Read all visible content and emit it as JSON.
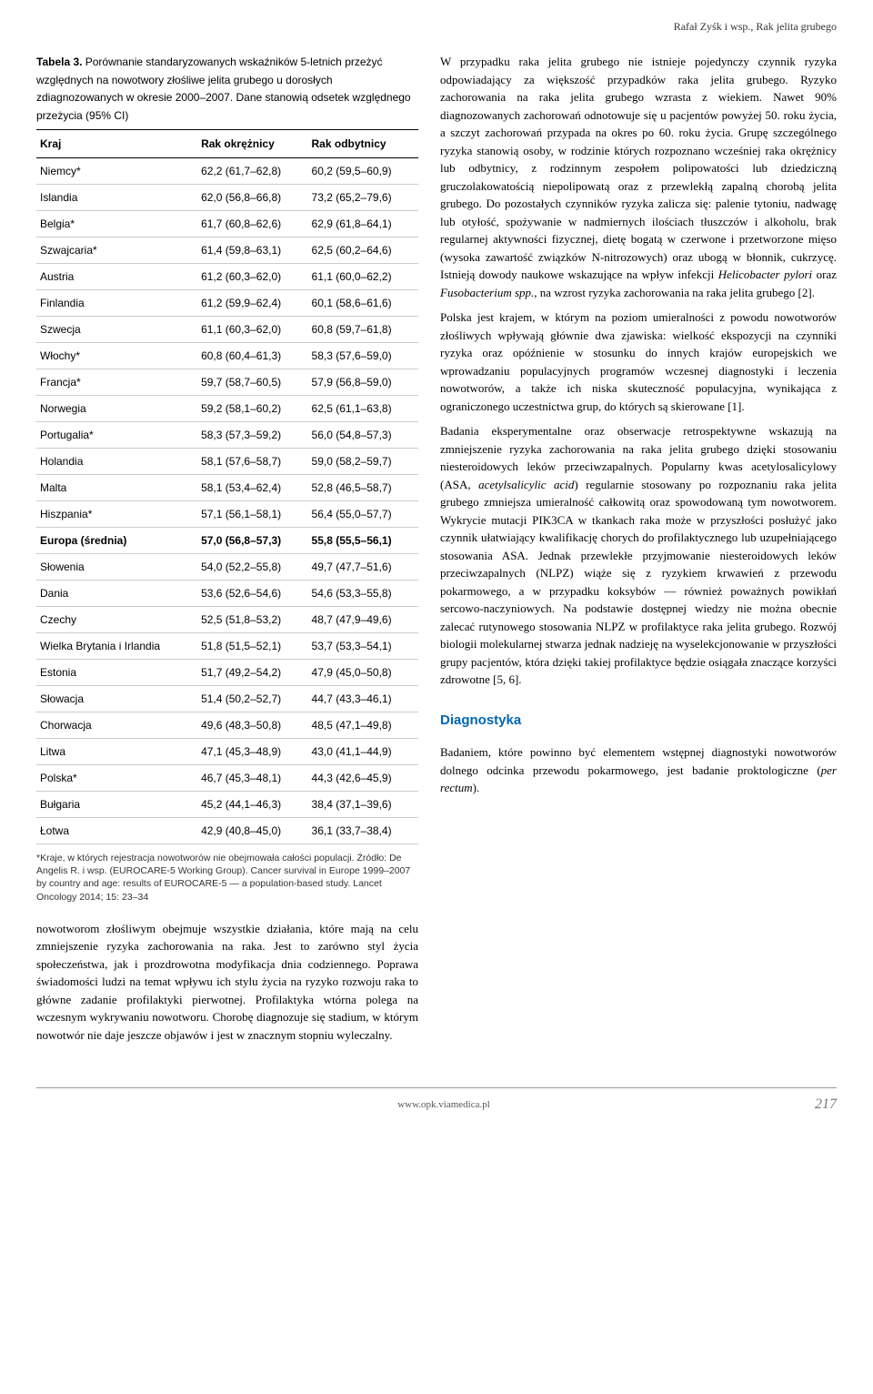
{
  "header": {
    "running_title": "Rafał Zyśk i wsp., Rak jelita grubego"
  },
  "table": {
    "number_label": "Tabela 3.",
    "caption": "Porównanie standaryzowanych wskaźników 5-letnich przeżyć względnych na nowotwory złośliwe jelita grubego u dorosłych zdiagnozowanych w okresie 2000–2007. Dane stanowią odsetek względnego przeżycia (95% CI)",
    "columns": [
      "Kraj",
      "Rak okrężnicy",
      "Rak odbytnicy"
    ],
    "rows": [
      {
        "country": "Niemcy*",
        "colon": "62,2 (61,7–62,8)",
        "rectum": "60,2 (59,5–60,9)",
        "bold": false
      },
      {
        "country": "Islandia",
        "colon": "62,0 (56,8–66,8)",
        "rectum": "73,2 (65,2–79,6)",
        "bold": false
      },
      {
        "country": "Belgia*",
        "colon": "61,7 (60,8–62,6)",
        "rectum": "62,9 (61,8–64,1)",
        "bold": false
      },
      {
        "country": "Szwajcaria*",
        "colon": "61,4 (59,8–63,1)",
        "rectum": "62,5 (60,2–64,6)",
        "bold": false
      },
      {
        "country": "Austria",
        "colon": "61,2 (60,3–62,0)",
        "rectum": "61,1 (60,0–62,2)",
        "bold": false
      },
      {
        "country": "Finlandia",
        "colon": "61,2 (59,9–62,4)",
        "rectum": "60,1 (58,6–61,6)",
        "bold": false
      },
      {
        "country": "Szwecja",
        "colon": "61,1 (60,3–62,0)",
        "rectum": "60,8 (59,7–61,8)",
        "bold": false
      },
      {
        "country": "Włochy*",
        "colon": "60,8 (60,4–61,3)",
        "rectum": "58,3 (57,6–59,0)",
        "bold": false
      },
      {
        "country": "Francja*",
        "colon": "59,7 (58,7–60,5)",
        "rectum": "57,9 (56,8–59,0)",
        "bold": false
      },
      {
        "country": "Norwegia",
        "colon": "59,2 (58,1–60,2)",
        "rectum": "62,5 (61,1–63,8)",
        "bold": false
      },
      {
        "country": "Portugalia*",
        "colon": "58,3 (57,3–59,2)",
        "rectum": "56,0 (54,8–57,3)",
        "bold": false
      },
      {
        "country": "Holandia",
        "colon": "58,1 (57,6–58,7)",
        "rectum": "59,0 (58,2–59,7)",
        "bold": false
      },
      {
        "country": "Malta",
        "colon": "58,1 (53,4–62,4)",
        "rectum": "52,8 (46,5–58,7)",
        "bold": false
      },
      {
        "country": "Hiszpania*",
        "colon": "57,1 (56,1–58,1)",
        "rectum": "56,4 (55,0–57,7)",
        "bold": false
      },
      {
        "country": "Europa (średnia)",
        "colon": "57,0 (56,8–57,3)",
        "rectum": "55,8 (55,5–56,1)",
        "bold": true
      },
      {
        "country": "Słowenia",
        "colon": "54,0 (52,2–55,8)",
        "rectum": "49,7 (47,7–51,6)",
        "bold": false
      },
      {
        "country": "Dania",
        "colon": "53,6 (52,6–54,6)",
        "rectum": "54,6 (53,3–55,8)",
        "bold": false
      },
      {
        "country": "Czechy",
        "colon": "52,5 (51,8–53,2)",
        "rectum": "48,7 (47,9–49,6)",
        "bold": false
      },
      {
        "country": "Wielka Brytania i Irlandia",
        "colon": "51,8 (51,5–52,1)",
        "rectum": "53,7 (53,3–54,1)",
        "bold": false
      },
      {
        "country": "Estonia",
        "colon": "51,7 (49,2–54,2)",
        "rectum": "47,9 (45,0–50,8)",
        "bold": false
      },
      {
        "country": "Słowacja",
        "colon": "51,4 (50,2–52,7)",
        "rectum": "44,7 (43,3–46,1)",
        "bold": false
      },
      {
        "country": "Chorwacja",
        "colon": "49,6 (48,3–50,8)",
        "rectum": "48,5 (47,1–49,8)",
        "bold": false
      },
      {
        "country": "Litwa",
        "colon": "47,1 (45,3–48,9)",
        "rectum": "43,0 (41,1–44,9)",
        "bold": false
      },
      {
        "country": "Polska*",
        "colon": "46,7 (45,3–48,1)",
        "rectum": "44,3 (42,6–45,9)",
        "bold": false
      },
      {
        "country": "Bułgaria",
        "colon": "45,2 (44,1–46,3)",
        "rectum": "38,4 (37,1–39,6)",
        "bold": false
      },
      {
        "country": "Łotwa",
        "colon": "42,9 (40,8–45,0)",
        "rectum": "36,1 (33,7–38,4)",
        "bold": false
      }
    ],
    "footnote": "*Kraje, w których rejestracja nowotworów nie obejmowała całości populacji. Źródło: De Angelis R. i wsp. (EUROCARE-5 Working Group). Cancer survival in Europe 1999–2007 by country and age: results of EUROCARE-5 — a population-based study. Lancet Oncology 2014; 15: 23–34"
  },
  "left_body": {
    "para1": "nowotworom złośliwym obejmuje wszystkie działania, które mają na celu zmniejszenie ryzyka zachorowania na raka. Jest to zarówno styl życia społeczeństwa, jak i prozdrowotna modyfikacja dnia codziennego. Poprawa świadomości ludzi na temat wpływu ich stylu życia na ryzyko rozwoju raka to główne zadanie profilaktyki pierwotnej. Profilaktyka wtórna polega na wczesnym wykrywaniu nowotworu. Chorobę diagnozuje się stadium, w którym nowotwór nie daje jeszcze objawów i jest w znacznym stopniu wyleczalny."
  },
  "right_body": {
    "para1_a": "W przypadku raka jelita grubego nie istnieje pojedynczy czynnik ryzyka odpowiadający za większość przypadków raka jelita grubego. Ryzyko zachorowania na raka jelita grubego wzrasta z wiekiem. Nawet 90% diagnozowanych zachorowań odnotowuje się u pacjentów powyżej 50. roku życia, a szczyt zachorowań przypada na okres po 60. roku życia. Grupę szczególnego ryzyka stanowią osoby, w rodzinie których rozpoznano wcześniej raka okrężnicy lub odbytnicy, z rodzinnym zespołem polipowatości lub dziedziczną gruczolakowatością niepolipowatą oraz z przewlekłą zapalną chorobą jelita grubego. Do pozostałych czynników ryzyka zalicza się: palenie tytoniu, nadwagę lub otyłość, spożywanie w nadmiernych ilościach tłuszczów i alkoholu, brak regularnej aktywności fizycznej, dietę bogatą w czerwone i przetworzone mięso (wysoka zawartość związków N-nitrozowych) oraz ubogą w błonnik, cukrzycę. Istnieją dowody naukowe wskazujące na wpływ infekcji ",
    "para1_it1": "Helicobacter pylori",
    "para1_b": " oraz ",
    "para1_it2": "Fusobacterium spp.",
    "para1_c": ", na wzrost ryzyka zachorowania na raka jelita grubego [2].",
    "para2": "Polska jest krajem, w którym na poziom umieralności z powodu nowotworów złośliwych wpływają głównie dwa zjawiska: wielkość ekspozycji na czynniki ryzyka oraz opóźnienie w stosunku do innych krajów europejskich we wprowadzaniu populacyjnych programów wczesnej diagnostyki i leczenia nowotworów, a także ich niska skuteczność populacyjna, wynikająca z ograniczonego uczestnictwa grup, do których są skierowane [1].",
    "para3_a": "Badania eksperymentalne oraz obserwacje retrospektywne wskazują na zmniejszenie ryzyka zachorowania na raka jelita grubego dzięki stosowaniu niesteroidowych leków przeciwzapalnych. Popularny kwas acetylosalicylowy (ASA, ",
    "para3_it": "acetylsalicylic acid",
    "para3_b": ") regularnie stosowany po rozpoznaniu raka jelita grubego zmniejsza umieralność całkowitą oraz spowodowaną tym nowotworem. Wykrycie mutacji PIK3CA w tkankach raka może w przyszłości posłużyć jako czynnik ułatwiający kwalifikację chorych do profilaktycznego lub uzupełniającego stosowania ASA. Jednak przewlekłe przyjmowanie niesteroidowych leków przeciwzapalnych (NLPZ) wiąże się z ryzykiem krwawień z przewodu pokarmowego, a w przypadku koksybów — również poważnych powikłań sercowo-naczyniowych. Na podstawie dostępnej wiedzy nie można obecnie zalecać rutynowego stosowania NLPZ w profilaktyce raka jelita grubego. Rozwój biologii molekularnej stwarza jednak nadzieję na wyselekcjonowanie w przyszłości grupy pacjentów, która dzięki takiej profilaktyce będzie osiągała znaczące korzyści zdrowotne [5, 6].",
    "section_heading": "Diagnostyka",
    "para4_a": "Badaniem, które powinno być elementem wstępnej diagnostyki nowotworów dolnego odcinka przewodu pokarmowego, jest badanie proktologiczne (",
    "para4_it": "per rectum",
    "para4_b": ")."
  },
  "footer": {
    "url": "www.opk.viamedica.pl",
    "page": "217"
  }
}
